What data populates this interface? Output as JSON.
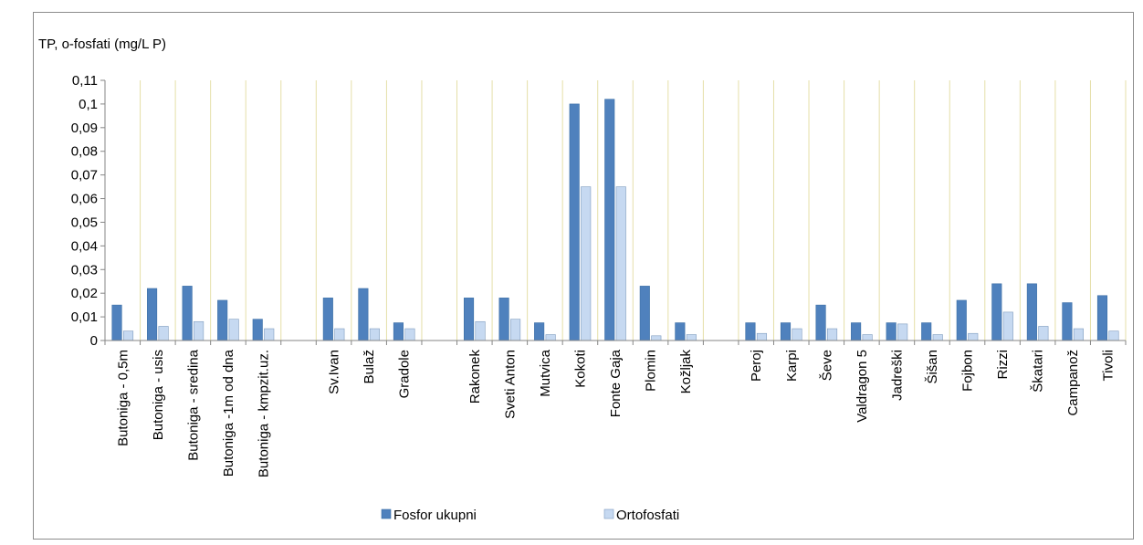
{
  "chart_data": {
    "type": "bar",
    "title": "TP, o-fosfati (mg/L P)",
    "ylim": [
      0,
      0.11
    ],
    "ytick_step": 0.01,
    "ytick_labels": [
      "0",
      "0,01",
      "0,02",
      "0,03",
      "0,04",
      "0,05",
      "0,06",
      "0,07",
      "0,08",
      "0,09",
      "0,1",
      "0,11"
    ],
    "grid": "vertical",
    "categories": [
      "Butoniga - 0,5m",
      "Butoniga - usis",
      "Butoniga - sredina",
      "Butoniga -1m od dna",
      "Butoniga - kmpzit.uz.",
      "",
      "Sv.Ivan",
      "Bulaž",
      "Gradole",
      "",
      "Rakonek",
      "Sveti Anton",
      "Mutvica",
      "Kokoti",
      "Fonte Gaja",
      "Plomin",
      "Kožljak",
      "",
      "Peroj",
      "Karpi",
      "Ševe",
      "Valdragon 5",
      "Jadreški",
      "Šišan",
      "Fojbon",
      "Rizzi",
      "Škatari",
      "Campanož",
      "Tivoli"
    ],
    "series": [
      {
        "name": "Fosfor ukupni",
        "color": "#4f81bd",
        "values": [
          0.015,
          0.022,
          0.023,
          0.017,
          0.009,
          null,
          0.018,
          0.022,
          0.0075,
          null,
          0.018,
          0.018,
          0.0075,
          0.1,
          0.102,
          0.023,
          0.0075,
          null,
          0.0075,
          0.0075,
          0.015,
          0.0075,
          0.0075,
          0.0075,
          0.017,
          0.024,
          0.024,
          0.016,
          0.019
        ]
      },
      {
        "name": "Ortofosfati",
        "color": "#c6d9f1",
        "values": [
          0.004,
          0.006,
          0.008,
          0.009,
          0.005,
          null,
          0.005,
          0.005,
          0.005,
          null,
          0.008,
          0.009,
          0.0025,
          0.065,
          0.065,
          0.002,
          0.0025,
          null,
          0.003,
          0.005,
          0.005,
          0.0025,
          0.007,
          0.0025,
          0.003,
          0.012,
          0.006,
          0.005,
          0.004
        ]
      }
    ],
    "legend_position": "bottom"
  }
}
